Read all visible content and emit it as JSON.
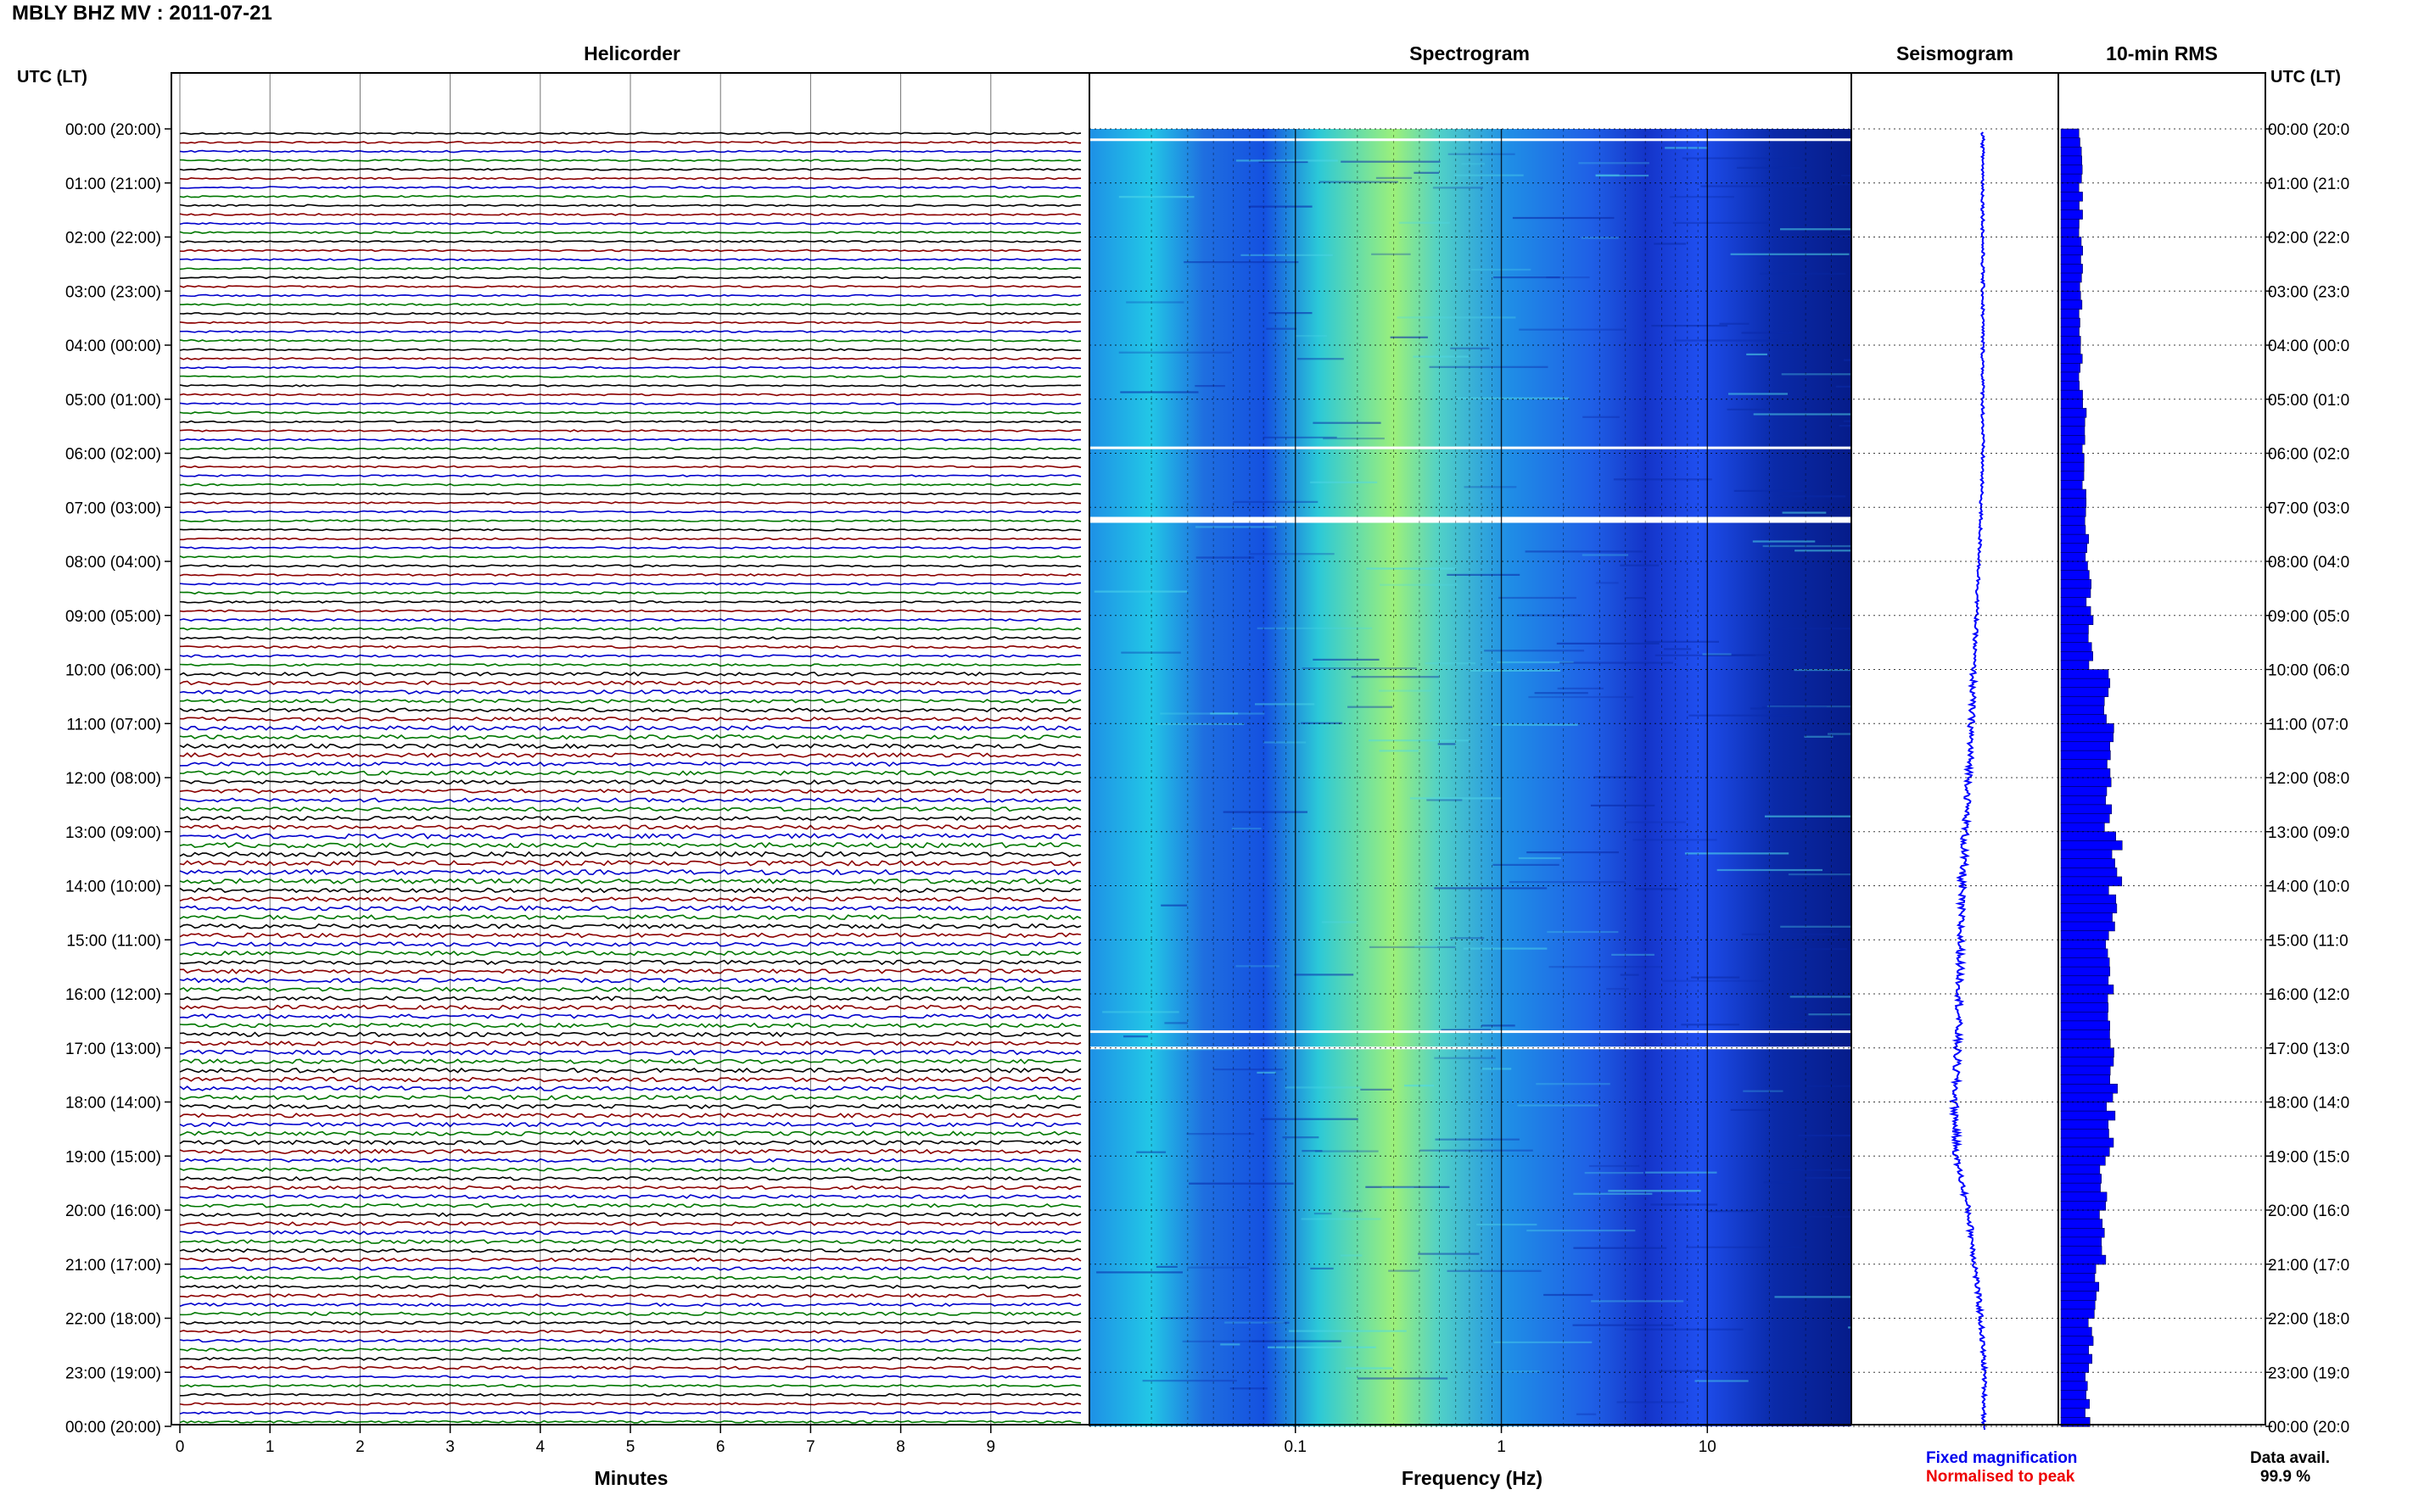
{
  "header": {
    "title": "MBLY BHZ MV : 2011-07-21",
    "time_axis_label": "UTC (LT)"
  },
  "panels": {
    "helicorder": "Helicorder",
    "spectrogram": "Spectrogram",
    "seismogram": "Seismogram",
    "rms": "10-min RMS"
  },
  "footer": {
    "helicorder_xlabel": "Minutes",
    "spectrogram_xlabel": "Frequency (Hz)",
    "fixed_magnification": "Fixed magnification",
    "normalised_to_peak": "Normalised to peak",
    "data_avail_label": "Data avail.",
    "data_avail_value": "99.9 %"
  },
  "colors": {
    "trace_cycle": [
      "#000000",
      "#8b0000",
      "#0000cc",
      "#007700"
    ],
    "fixed_magnification": "#0000ee",
    "normalised_to_peak": "#ee0000",
    "rms_fill": "#0000ff",
    "seismogram": "#0000ff",
    "spectrogram_low": "#00008b",
    "spectrogram_high": "#ccff66"
  },
  "chart_data": [
    {
      "type": "line",
      "name": "helicorder",
      "title": "Helicorder",
      "xlabel": "Minutes",
      "xlim": [
        0,
        10
      ],
      "x_ticks": [
        0,
        1,
        2,
        3,
        4,
        5,
        6,
        7,
        8,
        9
      ],
      "rows_per_hour": 6,
      "row_length_minutes": 10,
      "y_tick_labels": [
        "00:00 (20:00)",
        "01:00 (21:00)",
        "02:00 (22:00)",
        "03:00 (23:00)",
        "04:00 (00:00)",
        "05:00 (01:00)",
        "06:00 (02:00)",
        "07:00 (03:00)",
        "08:00 (04:00)",
        "09:00 (05:00)",
        "10:00 (06:00)",
        "11:00 (07:00)",
        "12:00 (08:00)",
        "13:00 (09:00)",
        "14:00 (10:00)",
        "15:00 (11:00)",
        "16:00 (12:00)",
        "17:00 (13:00)",
        "18:00 (14:00)",
        "19:00 (15:00)",
        "20:00 (16:00)",
        "21:00 (17:00)",
        "22:00 (18:00)",
        "23:00 (19:00)",
        "00:00 (20:00)"
      ],
      "y_tick_labels_right": [
        "00:00 (20:0",
        "01:00 (21:0",
        "02:00 (22:0",
        "03:00 (23:0",
        "04:00 (00:0",
        "05:00 (01:0",
        "06:00 (02:0",
        "07:00 (03:0",
        "08:00 (04:0",
        "09:00 (05:0",
        "10:00 (06:0",
        "11:00 (07:0",
        "12:00 (08:0",
        "13:00 (09:0",
        "14:00 (10:0",
        "15:00 (11:0",
        "16:00 (12:0",
        "17:00 (13:0",
        "18:00 (14:0",
        "19:00 (15:0",
        "20:00 (16:0",
        "21:00 (17:0",
        "22:00 (18:0",
        "23:00 (19:0",
        "00:00 (20:0"
      ],
      "hourly_relative_amplitude": [
        0.35,
        0.35,
        0.35,
        0.35,
        0.35,
        0.35,
        0.35,
        0.35,
        0.4,
        0.45,
        0.75,
        0.85,
        0.8,
        1.0,
        0.9,
        0.85,
        0.85,
        0.9,
        0.85,
        0.7,
        0.7,
        0.65,
        0.55,
        0.45
      ]
    },
    {
      "type": "heatmap",
      "name": "spectrogram",
      "title": "Spectrogram",
      "xlabel": "Frequency (Hz)",
      "x_scale": "log",
      "xlim": [
        0.01,
        50
      ],
      "x_tick_labels": [
        "0.1",
        "1",
        "10"
      ],
      "x_tick_values": [
        0.1,
        1,
        10
      ],
      "peak_frequency_hz": 0.4,
      "gaps_utc_hours": [
        0.2,
        5.9,
        7.2,
        16.7,
        17.0
      ]
    },
    {
      "type": "line",
      "name": "seismogram",
      "title": "Seismogram",
      "hours": [
        0,
        2,
        4,
        6,
        8,
        10,
        12,
        14,
        16,
        18,
        19,
        20,
        21,
        22,
        23,
        24
      ],
      "offset": [
        0.1,
        0.1,
        0.1,
        0.1,
        0.06,
        0.0,
        -0.05,
        -0.13,
        -0.15,
        -0.2,
        -0.18,
        -0.05,
        0.02,
        0.08,
        0.12,
        0.11
      ]
    },
    {
      "type": "bar",
      "name": "rms",
      "title": "10-min RMS",
      "hourly_relative_rms": [
        0.3,
        0.3,
        0.3,
        0.3,
        0.3,
        0.35,
        0.35,
        0.4,
        0.42,
        0.45,
        0.7,
        0.75,
        0.7,
        0.85,
        0.8,
        0.75,
        0.75,
        0.8,
        0.75,
        0.65,
        0.62,
        0.55,
        0.45,
        0.4
      ]
    }
  ]
}
